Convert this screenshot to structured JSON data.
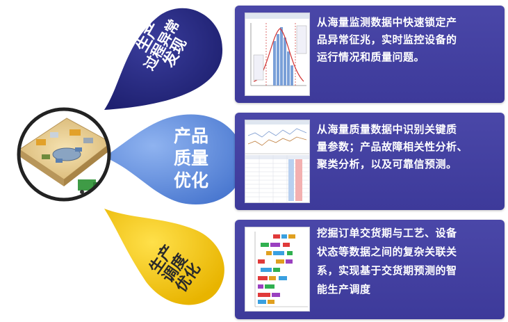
{
  "drops": {
    "top": {
      "label_lines": [
        "生产",
        "过程异常",
        "发现"
      ],
      "color": "#2b2e86"
    },
    "middle": {
      "label_lines": [
        "产品",
        "质量",
        "优化"
      ],
      "color": "#5a86d8"
    },
    "bottom": {
      "label_lines": [
        "生产",
        "调度",
        "优化"
      ],
      "color": "#f2c200"
    }
  },
  "panels": [
    {
      "lines": [
        "从海量监测数据中快速锁定产",
        "品异常征兆，实时监控设备的",
        "运行情况和质量问题。"
      ],
      "thumb": "monitoring-chart"
    },
    {
      "lines": [
        "从海量质量数据中识别关键质",
        "量参数；产品故障相关性分析、",
        "聚类分析，以及可靠信预测。"
      ],
      "thumb": "quality-table"
    },
    {
      "lines": [
        "挖掘订单交货期与工艺、设备",
        "状态等数据之间的复杂关联关",
        "系，实现基于交货期预测的智",
        "能生产调度"
      ],
      "thumb": "gantt-chart"
    }
  ],
  "colors": {
    "panel": "#3f3c9c",
    "ring": "#222222"
  }
}
